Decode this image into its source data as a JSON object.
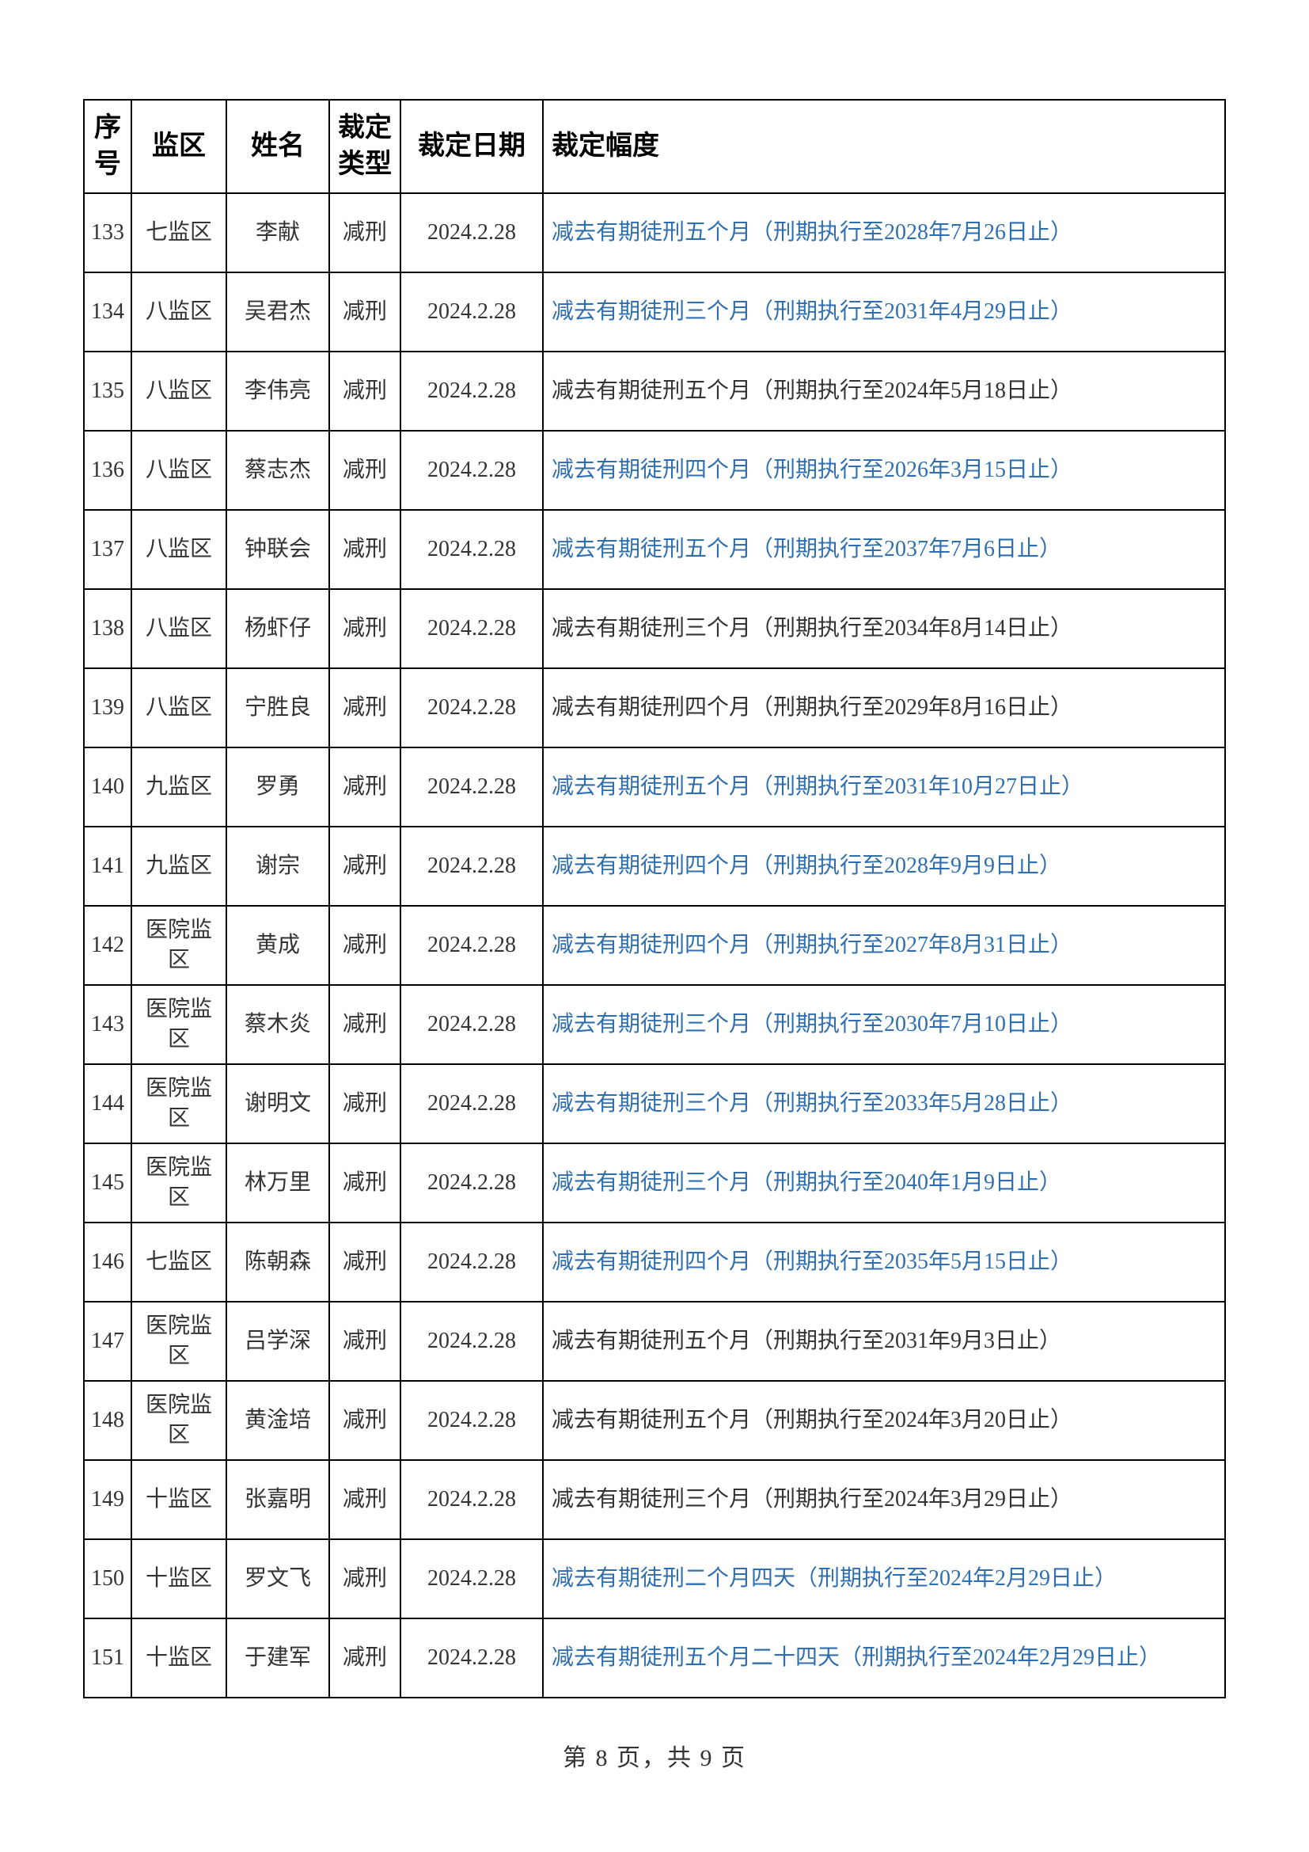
{
  "table": {
    "headers": {
      "seq": "序号",
      "area": "监区",
      "name": "姓名",
      "type": "裁定类型",
      "date": "裁定日期",
      "detail": "裁定幅度"
    },
    "rows": [
      {
        "seq": "133",
        "area": "七监区",
        "name": "李献",
        "type": "减刑",
        "date": "2024.2.28",
        "detail": "减去有期徒刑五个月（刑期执行至2028年7月26日止）",
        "link": true
      },
      {
        "seq": "134",
        "area": "八监区",
        "name": "吴君杰",
        "type": "减刑",
        "date": "2024.2.28",
        "detail": "减去有期徒刑三个月（刑期执行至2031年4月29日止）",
        "link": true
      },
      {
        "seq": "135",
        "area": "八监区",
        "name": "李伟亮",
        "type": "减刑",
        "date": "2024.2.28",
        "detail": "减去有期徒刑五个月（刑期执行至2024年5月18日止）",
        "link": false
      },
      {
        "seq": "136",
        "area": "八监区",
        "name": "蔡志杰",
        "type": "减刑",
        "date": "2024.2.28",
        "detail": "减去有期徒刑四个月（刑期执行至2026年3月15日止）",
        "link": true
      },
      {
        "seq": "137",
        "area": "八监区",
        "name": "钟联会",
        "type": "减刑",
        "date": "2024.2.28",
        "detail": "减去有期徒刑五个月（刑期执行至2037年7月6日止）",
        "link": true
      },
      {
        "seq": "138",
        "area": "八监区",
        "name": "杨虾仔",
        "type": "减刑",
        "date": "2024.2.28",
        "detail": "减去有期徒刑三个月（刑期执行至2034年8月14日止）",
        "link": false
      },
      {
        "seq": "139",
        "area": "八监区",
        "name": "宁胜良",
        "type": "减刑",
        "date": "2024.2.28",
        "detail": "减去有期徒刑四个月（刑期执行至2029年8月16日止）",
        "link": false
      },
      {
        "seq": "140",
        "area": "九监区",
        "name": "罗勇",
        "type": "减刑",
        "date": "2024.2.28",
        "detail": "减去有期徒刑五个月（刑期执行至2031年10月27日止）",
        "link": true
      },
      {
        "seq": "141",
        "area": "九监区",
        "name": "谢宗",
        "type": "减刑",
        "date": "2024.2.28",
        "detail": "减去有期徒刑四个月（刑期执行至2028年9月9日止）",
        "link": true
      },
      {
        "seq": "142",
        "area": "医院监区",
        "name": "黄成",
        "type": "减刑",
        "date": "2024.2.28",
        "detail": "减去有期徒刑四个月（刑期执行至2027年8月31日止）",
        "link": true
      },
      {
        "seq": "143",
        "area": "医院监区",
        "name": "蔡木炎",
        "type": "减刑",
        "date": "2024.2.28",
        "detail": "减去有期徒刑三个月（刑期执行至2030年7月10日止）",
        "link": true
      },
      {
        "seq": "144",
        "area": "医院监区",
        "name": "谢明文",
        "type": "减刑",
        "date": "2024.2.28",
        "detail": "减去有期徒刑三个月（刑期执行至2033年5月28日止）",
        "link": true
      },
      {
        "seq": "145",
        "area": "医院监区",
        "name": "林万里",
        "type": "减刑",
        "date": "2024.2.28",
        "detail": "减去有期徒刑三个月（刑期执行至2040年1月9日止）",
        "link": true
      },
      {
        "seq": "146",
        "area": "七监区",
        "name": "陈朝森",
        "type": "减刑",
        "date": "2024.2.28",
        "detail": "减去有期徒刑四个月（刑期执行至2035年5月15日止）",
        "link": true
      },
      {
        "seq": "147",
        "area": "医院监区",
        "name": "吕学深",
        "type": "减刑",
        "date": "2024.2.28",
        "detail": "减去有期徒刑五个月（刑期执行至2031年9月3日止）",
        "link": false
      },
      {
        "seq": "148",
        "area": "医院监区",
        "name": "黄淦培",
        "type": "减刑",
        "date": "2024.2.28",
        "detail": "减去有期徒刑五个月（刑期执行至2024年3月20日止）",
        "link": false
      },
      {
        "seq": "149",
        "area": "十监区",
        "name": "张嘉明",
        "type": "减刑",
        "date": "2024.2.28",
        "detail": "减去有期徒刑三个月（刑期执行至2024年3月29日止）",
        "link": false
      },
      {
        "seq": "150",
        "area": "十监区",
        "name": "罗文飞",
        "type": "减刑",
        "date": "2024.2.28",
        "detail": "减去有期徒刑二个月四天（刑期执行至2024年2月29日止）",
        "link": true
      },
      {
        "seq": "151",
        "area": "十监区",
        "name": "于建军",
        "type": "减刑",
        "date": "2024.2.28",
        "detail": "减去有期徒刑五个月二十四天（刑期执行至2024年2月29日止）",
        "link": true
      }
    ]
  },
  "footer": {
    "text": "第 8 页，共 9 页"
  },
  "style": {
    "text_color": "#333333",
    "link_color": "#2f6fb0",
    "border_color": "#000000",
    "background": "#ffffff",
    "header_fontsize": 34,
    "cell_fontsize": 28,
    "footer_fontsize": 30
  }
}
